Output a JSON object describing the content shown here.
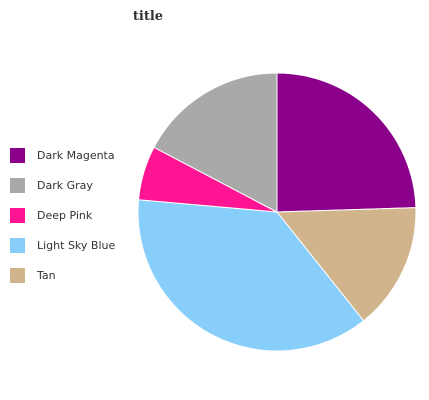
{
  "chart_data": {
    "type": "pie",
    "title": "title",
    "categories": [
      "Dark Magenta",
      "Dark Gray",
      "Deep Pink",
      "Light Sky Blue",
      "Tan"
    ],
    "values": [
      24.5,
      17.3,
      6.3,
      37.1,
      14.8
    ],
    "colors": [
      "#8B008B",
      "#A9A9A9",
      "#FF1493",
      "#87CEFA",
      "#D2B48C"
    ],
    "slice_order_clockwise_from_top": [
      "Dark Magenta",
      "Tan",
      "Light Sky Blue",
      "Deep Pink",
      "Dark Gray"
    ],
    "legend_position": "left"
  }
}
